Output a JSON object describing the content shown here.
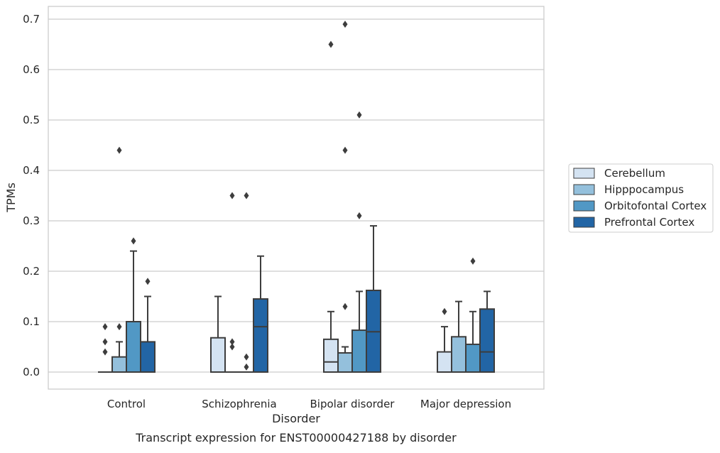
{
  "chart_data": {
    "type": "box",
    "title": "",
    "caption": "Transcript expression for ENST00000427188 by disorder",
    "xlabel": "Disorder",
    "ylabel": "TPMs",
    "ylim": [
      -0.035,
      0.725
    ],
    "yticks": [
      0.0,
      0.1,
      0.2,
      0.3,
      0.4,
      0.5,
      0.6,
      0.7
    ],
    "ytick_labels": [
      "0.0",
      "0.1",
      "0.2",
      "0.3",
      "0.4",
      "0.5",
      "0.6",
      "0.7"
    ],
    "categories": [
      "Control",
      "Schizophrenia",
      "Bipolar disorder",
      "Major depression"
    ],
    "grid": "horizontal",
    "legend_position": "right",
    "series": [
      {
        "name": "Cerebellum",
        "color": "#d4e3f2",
        "boxes": [
          {
            "whislo": 0,
            "q1": 0,
            "med": 0,
            "q3": 0,
            "whishi": 0,
            "fliers": [
              0.04,
              0.06,
              0.09
            ]
          },
          {
            "whislo": 0,
            "q1": 0,
            "med": 0,
            "q3": 0.068,
            "whishi": 0.15,
            "fliers": []
          },
          {
            "whislo": 0,
            "q1": 0,
            "med": 0.02,
            "q3": 0.065,
            "whishi": 0.12,
            "fliers": [
              0.65
            ]
          },
          {
            "whislo": 0,
            "q1": 0,
            "med": 0,
            "q3": 0.04,
            "whishi": 0.09,
            "fliers": [
              0.12
            ]
          }
        ]
      },
      {
        "name": "Hipppocampus",
        "color": "#94c0dc",
        "boxes": [
          {
            "whislo": 0,
            "q1": 0,
            "med": 0,
            "q3": 0.03,
            "whishi": 0.06,
            "fliers": [
              0.09,
              0.44
            ]
          },
          {
            "whislo": 0,
            "q1": 0,
            "med": 0,
            "q3": 0,
            "whishi": 0,
            "fliers": [
              0.05,
              0.06,
              0.35
            ]
          },
          {
            "whislo": 0,
            "q1": 0,
            "med": 0,
            "q3": 0.038,
            "whishi": 0.05,
            "fliers": [
              0.13,
              0.44,
              0.69
            ]
          },
          {
            "whislo": 0,
            "q1": 0,
            "med": 0,
            "q3": 0.07,
            "whishi": 0.14,
            "fliers": []
          }
        ]
      },
      {
        "name": "Orbitofontal Cortex",
        "color": "#5198c5",
        "boxes": [
          {
            "whislo": 0,
            "q1": 0,
            "med": 0,
            "q3": 0.1,
            "whishi": 0.24,
            "fliers": [
              0.26
            ]
          },
          {
            "whislo": 0,
            "q1": 0,
            "med": 0,
            "q3": 0,
            "whishi": 0,
            "fliers": [
              0.01,
              0.03,
              0.35
            ]
          },
          {
            "whislo": 0,
            "q1": 0,
            "med": 0,
            "q3": 0.083,
            "whishi": 0.16,
            "fliers": [
              0.31,
              0.51
            ]
          },
          {
            "whislo": 0,
            "q1": 0,
            "med": 0,
            "q3": 0.055,
            "whishi": 0.12,
            "fliers": [
              0.22
            ]
          }
        ]
      },
      {
        "name": "Prefrontal Cortex",
        "color": "#2265a5",
        "boxes": [
          {
            "whislo": 0,
            "q1": 0,
            "med": 0,
            "q3": 0.06,
            "whishi": 0.15,
            "fliers": [
              0.18
            ]
          },
          {
            "whislo": 0,
            "q1": 0,
            "med": 0.09,
            "q3": 0.145,
            "whishi": 0.23,
            "fliers": []
          },
          {
            "whislo": 0,
            "q1": 0,
            "med": 0.08,
            "q3": 0.162,
            "whishi": 0.29,
            "fliers": []
          },
          {
            "whislo": 0,
            "q1": 0,
            "med": 0.04,
            "q3": 0.125,
            "whishi": 0.16,
            "fliers": []
          }
        ]
      }
    ]
  }
}
